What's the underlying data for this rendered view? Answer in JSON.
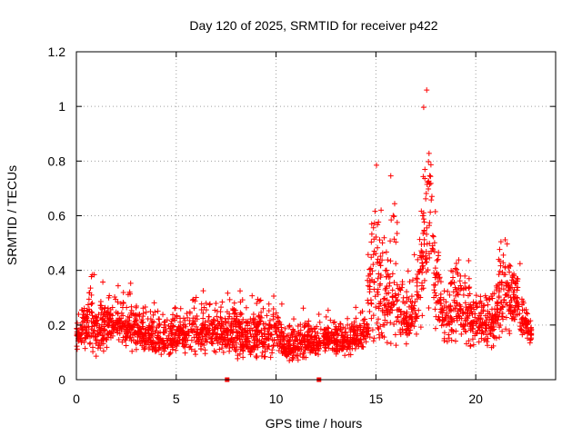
{
  "chart_data": {
    "type": "scatter",
    "title": "Day 120 of 2025, SRMTID for receiver p422",
    "xlabel": "GPS time / hours",
    "ylabel": "SRMTID / TECUs",
    "xlim": [
      0,
      24
    ],
    "ylim": [
      0,
      1.2
    ],
    "xticks": [
      0,
      5,
      10,
      15,
      20
    ],
    "xtick_labels": [
      "0",
      "5",
      "10",
      "15",
      "20"
    ],
    "yticks": [
      0,
      0.2,
      0.4,
      0.6,
      0.8,
      1.0,
      1.2
    ],
    "ytick_labels": [
      "0",
      "0.2",
      "0.4",
      "0.6",
      "0.8",
      "1",
      "1.2"
    ],
    "grid": true,
    "marker": "+",
    "color": "#ff0000",
    "data_gap_markers_x": [
      7.55,
      12.15
    ],
    "series": [
      {
        "name": "SRMTID",
        "envelope": [
          {
            "x": 0.0,
            "mean": 0.17,
            "spread": 0.07
          },
          {
            "x": 0.5,
            "mean": 0.2,
            "spread": 0.1
          },
          {
            "x": 0.6,
            "mean": 0.22,
            "spread": 0.2
          },
          {
            "x": 1.0,
            "mean": 0.15,
            "spread": 0.09
          },
          {
            "x": 1.5,
            "mean": 0.2,
            "spread": 0.1
          },
          {
            "x": 2.0,
            "mean": 0.22,
            "spread": 0.09
          },
          {
            "x": 2.7,
            "mean": 0.2,
            "spread": 0.12
          },
          {
            "x": 3.5,
            "mean": 0.16,
            "spread": 0.08
          },
          {
            "x": 4.5,
            "mean": 0.15,
            "spread": 0.08
          },
          {
            "x": 5.5,
            "mean": 0.17,
            "spread": 0.1
          },
          {
            "x": 6.5,
            "mean": 0.18,
            "spread": 0.1
          },
          {
            "x": 7.5,
            "mean": 0.17,
            "spread": 0.1
          },
          {
            "x": 8.5,
            "mean": 0.16,
            "spread": 0.11
          },
          {
            "x": 9.5,
            "mean": 0.16,
            "spread": 0.1
          },
          {
            "x": 10.0,
            "mean": 0.18,
            "spread": 0.14
          },
          {
            "x": 10.5,
            "mean": 0.11,
            "spread": 0.07
          },
          {
            "x": 11.5,
            "mean": 0.13,
            "spread": 0.08
          },
          {
            "x": 12.5,
            "mean": 0.15,
            "spread": 0.07
          },
          {
            "x": 13.5,
            "mean": 0.14,
            "spread": 0.07
          },
          {
            "x": 14.5,
            "mean": 0.17,
            "spread": 0.08
          },
          {
            "x": 15.0,
            "mean": 0.4,
            "spread": 0.38
          },
          {
            "x": 15.5,
            "mean": 0.25,
            "spread": 0.2
          },
          {
            "x": 15.9,
            "mean": 0.33,
            "spread": 0.3
          },
          {
            "x": 16.5,
            "mean": 0.22,
            "spread": 0.1
          },
          {
            "x": 17.0,
            "mean": 0.24,
            "spread": 0.12
          },
          {
            "x": 17.6,
            "mean": 0.6,
            "spread": 0.45
          },
          {
            "x": 18.0,
            "mean": 0.35,
            "spread": 0.2
          },
          {
            "x": 18.5,
            "mean": 0.2,
            "spread": 0.13
          },
          {
            "x": 19.0,
            "mean": 0.28,
            "spread": 0.17
          },
          {
            "x": 20.0,
            "mean": 0.2,
            "spread": 0.1
          },
          {
            "x": 21.0,
            "mean": 0.22,
            "spread": 0.12
          },
          {
            "x": 21.3,
            "mean": 0.32,
            "spread": 0.2
          },
          {
            "x": 22.0,
            "mean": 0.28,
            "spread": 0.12
          },
          {
            "x": 22.8,
            "mean": 0.16,
            "spread": 0.05
          }
        ]
      }
    ]
  }
}
